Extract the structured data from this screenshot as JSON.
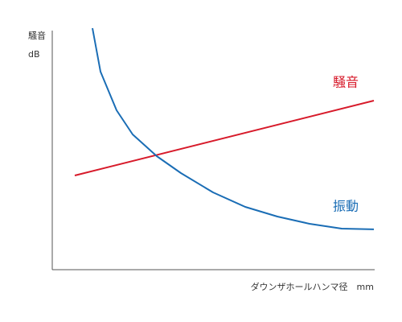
{
  "chart_data": {
    "type": "line",
    "y_label": "騒音",
    "y_unit": "dB",
    "x_label": "ダウンザホールハンマ径　mm",
    "xlim": [
      0,
      100
    ],
    "ylim": [
      0,
      100
    ],
    "series": [
      {
        "name": "騒音",
        "color": "#d71a2a",
        "x": [
          7,
          100
        ],
        "values": [
          39,
          70
        ]
      },
      {
        "name": "振動",
        "color": "#1a6db5",
        "x": [
          12.5,
          15,
          20,
          25,
          32.5,
          40,
          50,
          60,
          70,
          80,
          90,
          100
        ],
        "values": [
          100,
          82,
          66,
          56,
          47,
          40,
          32,
          26,
          22,
          19,
          17,
          16.7
        ]
      }
    ]
  }
}
